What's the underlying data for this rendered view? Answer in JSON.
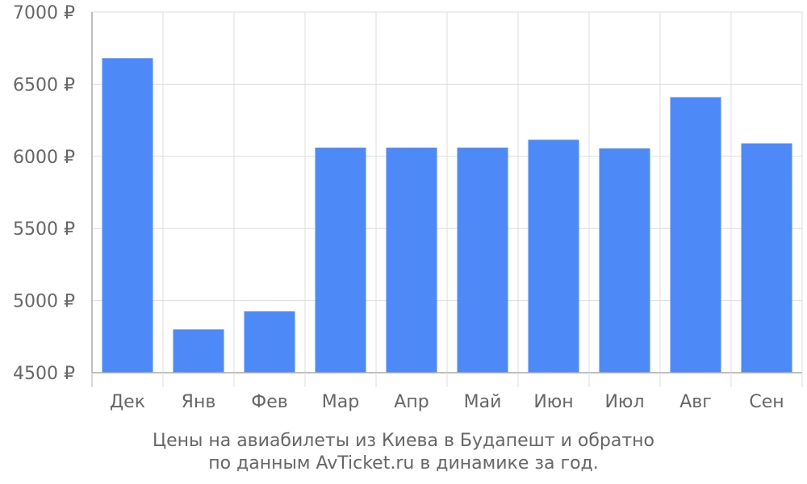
{
  "chart_data": {
    "type": "bar",
    "categories": [
      "Дек",
      "Янв",
      "Фев",
      "Мар",
      "Апр",
      "Май",
      "Июн",
      "Июл",
      "Авг",
      "Сен"
    ],
    "values": [
      6680,
      4800,
      4925,
      6060,
      6060,
      6060,
      6115,
      6055,
      6410,
      6090
    ],
    "ylim": [
      4500,
      7000
    ],
    "yticks": [
      4500,
      5000,
      5500,
      6000,
      6500,
      7000
    ],
    "ytick_labels": [
      "4500 ₽",
      "5000 ₽",
      "5500 ₽",
      "6000 ₽",
      "6500 ₽",
      "7000 ₽"
    ],
    "grid": true,
    "bar_color": "#4d8af7",
    "grid_color": "#dddddd",
    "axis_color": "#aaaaaa",
    "text_color": "#666666"
  },
  "caption": {
    "line1": "Цены на авиабилеты из Киева в Будапешт и обратно",
    "line2": "по данным AvTicket.ru в динамике за год."
  }
}
